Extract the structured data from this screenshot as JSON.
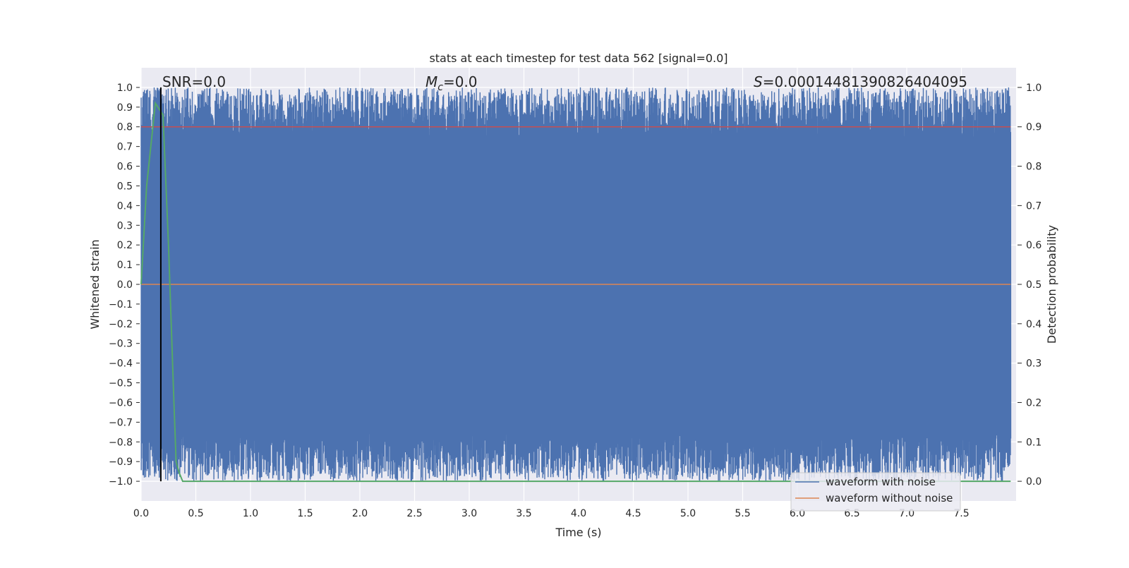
{
  "chart_data": {
    "type": "line",
    "title": "stats at each timestep for test data 562 [signal=0.0]",
    "xlabel": "Time (s)",
    "ylabel": "Whitened strain",
    "y2label": "Detection probability",
    "xlim": [
      0.0,
      8.0
    ],
    "ylim": [
      -1.1,
      1.1
    ],
    "y2lim": [
      -0.05,
      1.05
    ],
    "x_ticks": [
      "0.0",
      "0.5",
      "1.0",
      "1.5",
      "2.0",
      "2.5",
      "3.0",
      "3.5",
      "4.0",
      "4.5",
      "5.0",
      "5.5",
      "6.0",
      "6.5",
      "7.0",
      "7.5"
    ],
    "y_ticks": [
      "1.0",
      "0.9",
      "0.8",
      "0.7",
      "0.6",
      "0.5",
      "0.4",
      "0.3",
      "0.2",
      "0.1",
      "0.0",
      "−0.1",
      "−0.2",
      "−0.3",
      "−0.4",
      "−0.5",
      "−0.6",
      "−0.7",
      "−0.8",
      "−0.9",
      "−1.0"
    ],
    "y2_ticks": [
      "1.0",
      "0.9",
      "0.8",
      "0.7",
      "0.6",
      "0.5",
      "0.4",
      "0.3",
      "0.2",
      "0.1",
      "0.0"
    ],
    "grid": true,
    "legend_position": "bottom-right",
    "annotations": {
      "snr": "SNR=0.0",
      "mc_symbol": "M",
      "mc_sub": "c",
      "mc_value": "=0.0",
      "s_symbol": "S",
      "s_value": "=0.00014481390826404095"
    },
    "marker_line_x": 0.18,
    "series": [
      {
        "name": "waveform with noise",
        "axis": "left",
        "color": "#4c72b0",
        "style": "dense-noise",
        "range": [
          -1.0,
          1.0
        ],
        "envelope_high": [
          0.75,
          1.0
        ],
        "envelope_low": [
          -1.0,
          -0.75
        ]
      },
      {
        "name": "waveform without noise",
        "axis": "left",
        "color": "#dd8452",
        "style": "constant",
        "value": 0.0
      },
      {
        "axis": "right",
        "color": "#55a868",
        "x": [
          0.0,
          0.05,
          0.13,
          0.2,
          0.25,
          0.3,
          0.32,
          0.35,
          0.38,
          7.95
        ],
        "y": [
          0.5,
          0.75,
          0.96,
          0.93,
          0.6,
          0.2,
          0.05,
          0.02,
          0.0,
          0.0
        ]
      },
      {
        "axis": "right",
        "color": "#c44e52",
        "style": "constant",
        "value": 0.9
      }
    ]
  }
}
